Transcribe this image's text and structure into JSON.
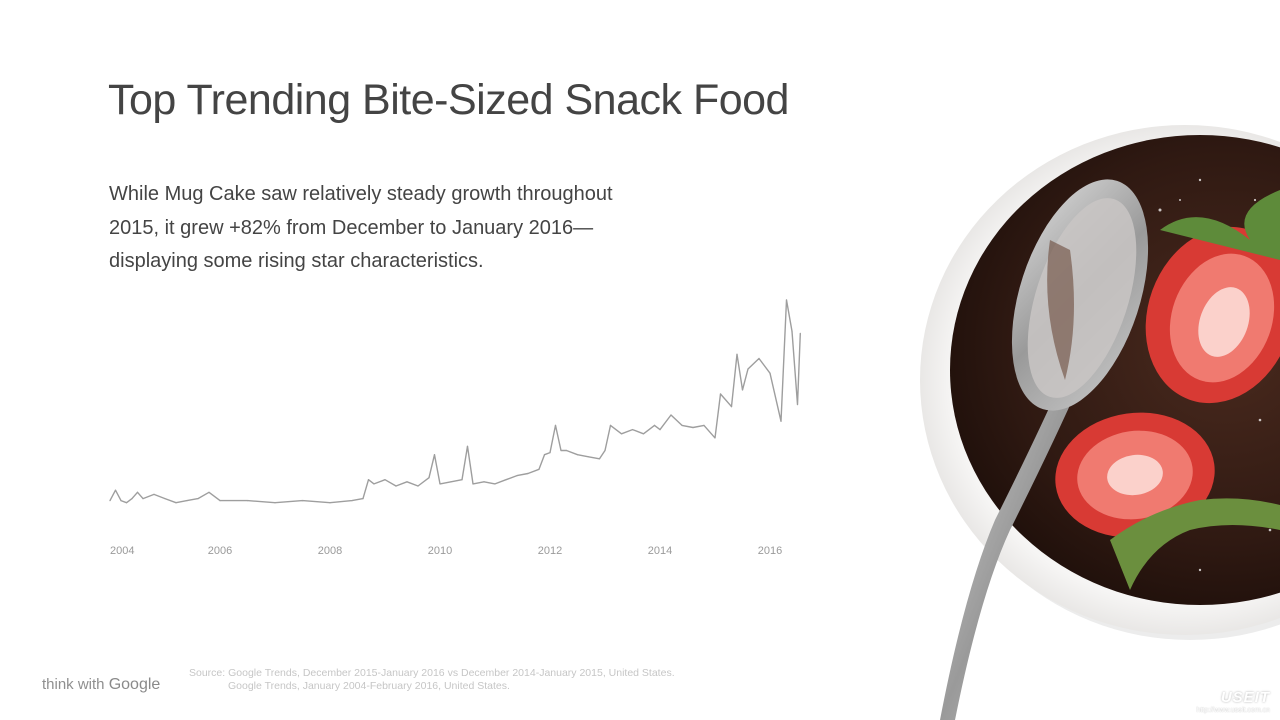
{
  "slide": {
    "title": "Top Trending Bite-Sized Snack Food",
    "subtitle_lines": [
      "While Mug Cake saw relatively steady growth throughout",
      "2015, it grew +82% from December to January 2016—",
      "displaying some rising star characteristics."
    ],
    "brand": {
      "prefix": "think with",
      "name": "Google"
    },
    "source_lines": [
      "Source: Google Trends, December 2015-January 2016 vs December 2014-January 2015, United States.",
      "Google Trends, January 2004-February 2016, United States."
    ],
    "watermark": "USEIT",
    "watermark_url": "http://www.useit.com.cn"
  },
  "photo": {
    "description_icon": "mug-cake-photo",
    "colors": {
      "bowl": "#f4f3f2",
      "cake": "#3a2119",
      "strawberry": "#e0463e",
      "spoon": "#b8b8b8"
    }
  },
  "chart_data": {
    "type": "line",
    "title": "",
    "xlabel": "",
    "ylabel": "",
    "x_ticks": [
      "2004",
      "2006",
      "2008",
      "2010",
      "2012",
      "2014",
      "2016"
    ],
    "xlim": [
      2004,
      2016.6
    ],
    "ylim": [
      0,
      100
    ],
    "grid": false,
    "legend": "none",
    "line_color": "#9e9e9e",
    "series": [
      {
        "values": [
          [
            2004.0,
            4
          ],
          [
            2004.1,
            9
          ],
          [
            2004.2,
            4
          ],
          [
            2004.3,
            3
          ],
          [
            2004.4,
            5
          ],
          [
            2004.5,
            8
          ],
          [
            2004.6,
            5
          ],
          [
            2004.8,
            7
          ],
          [
            2005.0,
            5
          ],
          [
            2005.2,
            3
          ],
          [
            2005.4,
            4
          ],
          [
            2005.6,
            5
          ],
          [
            2005.8,
            8
          ],
          [
            2006.0,
            4
          ],
          [
            2006.5,
            4
          ],
          [
            2007.0,
            3
          ],
          [
            2007.5,
            4
          ],
          [
            2008.0,
            3
          ],
          [
            2008.4,
            4
          ],
          [
            2008.6,
            5
          ],
          [
            2008.7,
            14
          ],
          [
            2008.8,
            12
          ],
          [
            2009.0,
            14
          ],
          [
            2009.2,
            11
          ],
          [
            2009.4,
            13
          ],
          [
            2009.6,
            11
          ],
          [
            2009.8,
            15
          ],
          [
            2009.9,
            26
          ],
          [
            2010.0,
            12
          ],
          [
            2010.2,
            13
          ],
          [
            2010.4,
            14
          ],
          [
            2010.5,
            30
          ],
          [
            2010.6,
            12
          ],
          [
            2010.8,
            13
          ],
          [
            2011.0,
            12
          ],
          [
            2011.2,
            14
          ],
          [
            2011.4,
            16
          ],
          [
            2011.6,
            17
          ],
          [
            2011.8,
            19
          ],
          [
            2011.9,
            26
          ],
          [
            2012.0,
            27
          ],
          [
            2012.1,
            40
          ],
          [
            2012.2,
            28
          ],
          [
            2012.3,
            28
          ],
          [
            2012.5,
            26
          ],
          [
            2012.7,
            25
          ],
          [
            2012.9,
            24
          ],
          [
            2013.0,
            28
          ],
          [
            2013.1,
            40
          ],
          [
            2013.3,
            36
          ],
          [
            2013.5,
            38
          ],
          [
            2013.7,
            36
          ],
          [
            2013.9,
            40
          ],
          [
            2014.0,
            38
          ],
          [
            2014.2,
            45
          ],
          [
            2014.4,
            40
          ],
          [
            2014.6,
            39
          ],
          [
            2014.8,
            40
          ],
          [
            2015.0,
            34
          ],
          [
            2015.1,
            55
          ],
          [
            2015.3,
            49
          ],
          [
            2015.4,
            74
          ],
          [
            2015.5,
            57
          ],
          [
            2015.6,
            67
          ],
          [
            2015.8,
            72
          ],
          [
            2016.0,
            65
          ],
          [
            2016.2,
            42
          ],
          [
            2016.3,
            100
          ],
          [
            2016.4,
            85
          ],
          [
            2016.5,
            50
          ],
          [
            2016.55,
            84
          ]
        ]
      }
    ]
  }
}
